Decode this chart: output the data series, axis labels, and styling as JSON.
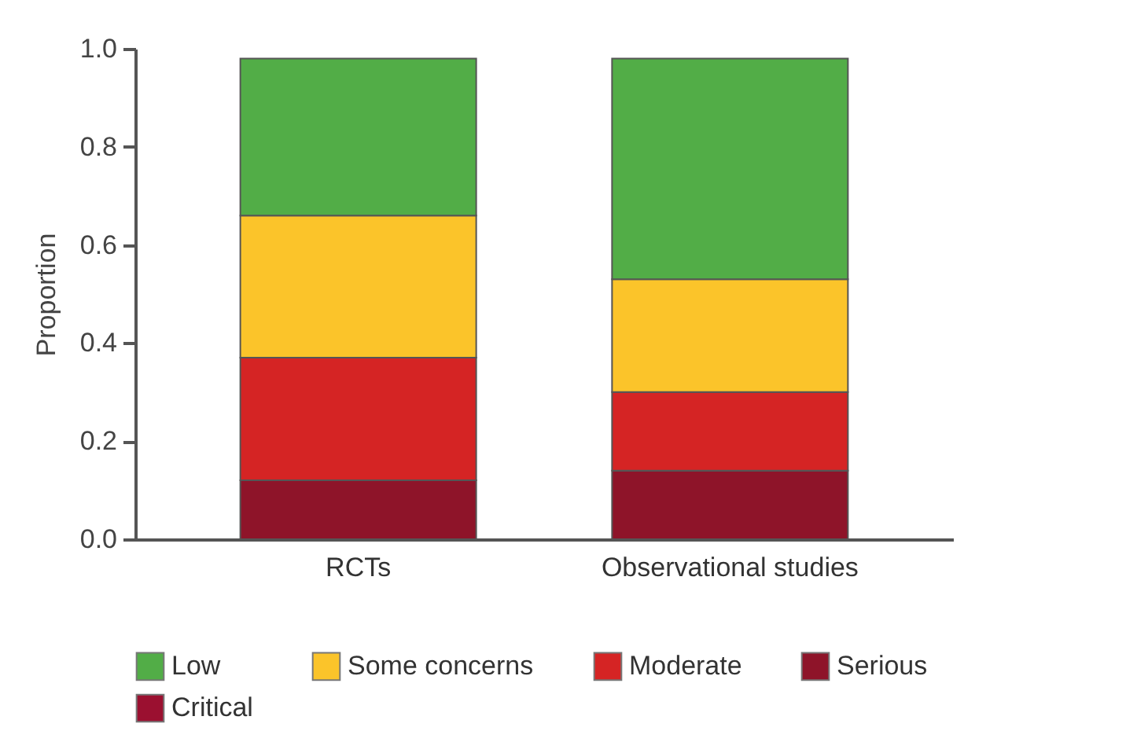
{
  "chart_data": {
    "type": "bar",
    "stacked": true,
    "categories": [
      "RCTs",
      "Observational studies"
    ],
    "ylabel": "Proportion",
    "ylim": [
      0,
      1
    ],
    "yticks": [
      {
        "value": 0,
        "label": "0.0"
      },
      0.2,
      0.4,
      0.6,
      0.8,
      {
        "value": 1,
        "label": "1.0"
      }
    ],
    "grid": false,
    "legend": "bottom",
    "series": [
      {
        "name": "Serious",
        "color": "#8e1429",
        "values": [
          0.12,
          0.14
        ]
      },
      {
        "name": "Critical",
        "color": "#9b1030",
        "values": [
          0,
          0
        ]
      },
      {
        "name": "Moderate",
        "color": "#d52424",
        "values": [
          0.25,
          0.16
        ]
      },
      {
        "name": "Some concerns",
        "color": "#fbc42a",
        "values": [
          0.29,
          0.23
        ]
      },
      {
        "name": "Low",
        "color": "#52ad47",
        "values": [
          0.32,
          0.45
        ]
      }
    ]
  }
}
